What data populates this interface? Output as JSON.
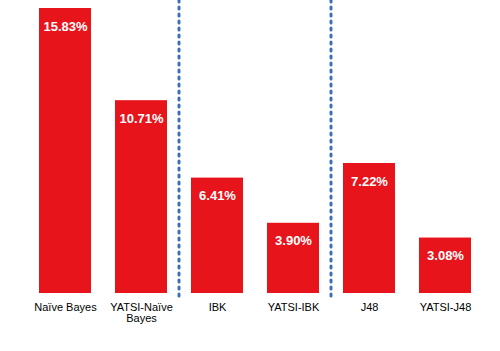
{
  "chart_data": {
    "type": "bar",
    "categories": [
      "Naïve Bayes",
      "YATSI-Naïve Bayes",
      "IBK",
      "YATSI-IBK",
      "J48",
      "YATSI-J48"
    ],
    "values": [
      15.83,
      10.71,
      6.41,
      3.9,
      7.22,
      3.08
    ],
    "value_labels": [
      "15.83%",
      "10.71%",
      "6.41%",
      "3.90%",
      "7.22%",
      "3.08%"
    ],
    "color": "#e8141b",
    "ylim": [
      0,
      15.83
    ],
    "yticks": [],
    "data_labels": true,
    "tick_labels": "x",
    "grid": false
  }
}
